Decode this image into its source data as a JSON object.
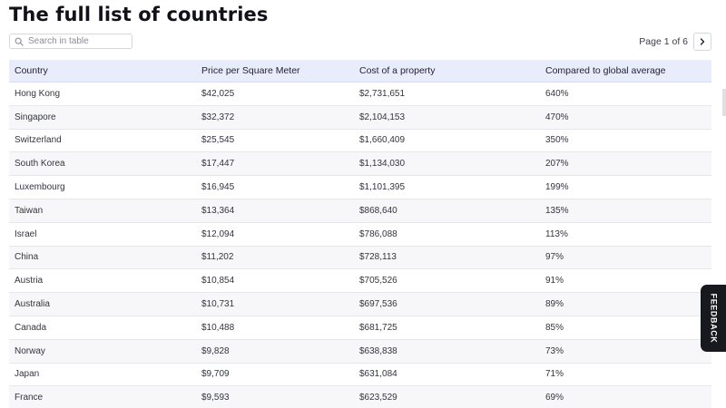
{
  "page": {
    "title": "The full list of countries"
  },
  "search": {
    "placeholder": "Search in table",
    "value": ""
  },
  "pagination": {
    "label": "Page 1 of 6",
    "current": 1,
    "total": 6
  },
  "table": {
    "columns": [
      "Country",
      "Price per Square Meter",
      "Cost of a property",
      "Compared to global average"
    ],
    "rows": [
      {
        "country": "Hong Kong",
        "price": "$42,025",
        "cost": "$2,731,651",
        "compared": "640%",
        "highlighted": true
      },
      {
        "country": "Singapore",
        "price": "$32,372",
        "cost": "$2,104,153",
        "compared": "470%",
        "highlighted": false
      },
      {
        "country": "Switzerland",
        "price": "$25,545",
        "cost": "$1,660,409",
        "compared": "350%",
        "highlighted": false
      },
      {
        "country": "South Korea",
        "price": "$17,447",
        "cost": "$1,134,030",
        "compared": "207%",
        "highlighted": false
      },
      {
        "country": "Luxembourg",
        "price": "$16,945",
        "cost": "$1,101,395",
        "compared": "199%",
        "highlighted": false
      },
      {
        "country": "Taiwan",
        "price": "$13,364",
        "cost": "$868,640",
        "compared": "135%",
        "highlighted": true
      },
      {
        "country": "Israel",
        "price": "$12,094",
        "cost": "$786,088",
        "compared": "113%",
        "highlighted": false
      },
      {
        "country": "China",
        "price": "$11,202",
        "cost": "$728,113",
        "compared": "97%",
        "highlighted": false
      },
      {
        "country": "Austria",
        "price": "$10,854",
        "cost": "$705,526",
        "compared": "91%",
        "highlighted": false
      },
      {
        "country": "Australia",
        "price": "$10,731",
        "cost": "$697,536",
        "compared": "89%",
        "highlighted": false
      },
      {
        "country": "Canada",
        "price": "$10,488",
        "cost": "$681,725",
        "compared": "85%",
        "highlighted": false
      },
      {
        "country": "Norway",
        "price": "$9,828",
        "cost": "$638,838",
        "compared": "73%",
        "highlighted": false
      },
      {
        "country": "Japan",
        "price": "$9,709",
        "cost": "$631,084",
        "compared": "71%",
        "highlighted": false
      },
      {
        "country": "France",
        "price": "$9,593",
        "cost": "$623,529",
        "compared": "69%",
        "highlighted": false
      }
    ]
  },
  "feedback": {
    "label": "FEEDBACK"
  },
  "colors": {
    "header_bg": "#e9ecfa",
    "highlight": "#f7f72a",
    "feedback_bg": "#18181f"
  },
  "icons": {
    "search": "search-icon",
    "next": "chevron-right-icon"
  }
}
